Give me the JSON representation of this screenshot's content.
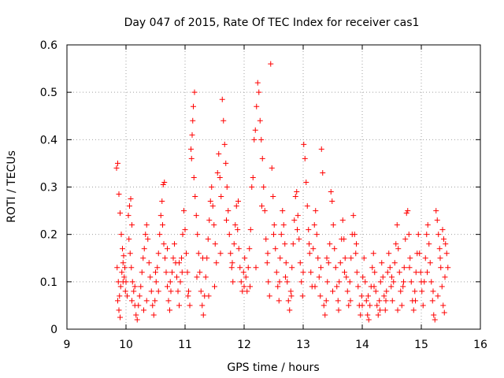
{
  "chart_data": {
    "type": "scatter",
    "title": "Day 047 of 2015, Rate Of TEC Index for receiver cas1",
    "xlabel": "GPS time / hours",
    "ylabel": "ROTI / TECUs",
    "xlim": [
      9,
      16
    ],
    "ylim": [
      0,
      0.6
    ],
    "xticks": [
      "9",
      "10",
      "11",
      "12",
      "13",
      "14",
      "15",
      "16"
    ],
    "yticks": [
      "0",
      "0.1",
      "0.2",
      "0.3",
      "0.4",
      "0.5",
      "0.6"
    ],
    "grid": true,
    "marker": "plus",
    "color": "#ff0000",
    "points": [
      [
        9.84,
        0.34
      ],
      [
        9.86,
        0.35
      ],
      [
        9.88,
        0.285
      ],
      [
        9.9,
        0.245
      ],
      [
        9.92,
        0.2
      ],
      [
        9.85,
        0.13
      ],
      [
        9.87,
        0.1
      ],
      [
        9.89,
        0.07
      ],
      [
        9.91,
        0.09
      ],
      [
        9.93,
        0.12
      ],
      [
        9.95,
        0.14
      ],
      [
        9.97,
        0.11
      ],
      [
        9.99,
        0.08
      ],
      [
        9.86,
        0.06
      ],
      [
        9.88,
        0.04
      ],
      [
        9.9,
        0.025
      ],
      [
        9.94,
        0.17
      ],
      [
        9.96,
        0.155
      ],
      [
        9.98,
        0.13
      ],
      [
        10.0,
        0.1
      ],
      [
        10.02,
        0.07
      ],
      [
        10.04,
        0.24
      ],
      [
        10.06,
        0.26
      ],
      [
        10.08,
        0.275
      ],
      [
        10.1,
        0.22
      ],
      [
        10.05,
        0.19
      ],
      [
        10.07,
        0.16
      ],
      [
        10.09,
        0.13
      ],
      [
        10.11,
        0.1
      ],
      [
        10.13,
        0.08
      ],
      [
        10.15,
        0.05
      ],
      [
        10.17,
        0.03
      ],
      [
        10.19,
        0.02
      ],
      [
        10.21,
        0.05
      ],
      [
        10.23,
        0.07
      ],
      [
        10.25,
        0.09
      ],
      [
        10.27,
        0.12
      ],
      [
        10.29,
        0.15
      ],
      [
        10.31,
        0.17
      ],
      [
        10.33,
        0.2
      ],
      [
        10.35,
        0.22
      ],
      [
        10.37,
        0.19
      ],
      [
        10.39,
        0.14
      ],
      [
        10.41,
        0.11
      ],
      [
        10.43,
        0.08
      ],
      [
        10.45,
        0.05
      ],
      [
        10.47,
        0.03
      ],
      [
        10.49,
        0.06
      ],
      [
        10.51,
        0.1
      ],
      [
        10.53,
        0.13
      ],
      [
        10.55,
        0.16
      ],
      [
        10.57,
        0.2
      ],
      [
        10.59,
        0.24
      ],
      [
        10.61,
        0.27
      ],
      [
        10.63,
        0.305
      ],
      [
        10.65,
        0.31
      ],
      [
        10.62,
        0.22
      ],
      [
        10.64,
        0.18
      ],
      [
        10.66,
        0.15
      ],
      [
        10.68,
        0.12
      ],
      [
        10.7,
        0.09
      ],
      [
        10.72,
        0.06
      ],
      [
        10.74,
        0.04
      ],
      [
        10.76,
        0.08
      ],
      [
        10.78,
        0.12
      ],
      [
        10.8,
        0.15
      ],
      [
        10.82,
        0.18
      ],
      [
        10.84,
        0.14
      ],
      [
        10.86,
        0.11
      ],
      [
        10.88,
        0.08
      ],
      [
        10.9,
        0.05
      ],
      [
        10.92,
        0.1
      ],
      [
        10.94,
        0.15
      ],
      [
        10.96,
        0.2
      ],
      [
        10.98,
        0.25
      ],
      [
        11.0,
        0.21
      ],
      [
        11.02,
        0.16
      ],
      [
        11.04,
        0.12
      ],
      [
        11.06,
        0.08
      ],
      [
        11.08,
        0.05
      ],
      [
        11.1,
        0.38
      ],
      [
        11.12,
        0.41
      ],
      [
        11.14,
        0.47
      ],
      [
        11.16,
        0.5
      ],
      [
        11.13,
        0.44
      ],
      [
        11.11,
        0.36
      ],
      [
        11.15,
        0.32
      ],
      [
        11.17,
        0.28
      ],
      [
        11.19,
        0.24
      ],
      [
        11.21,
        0.2
      ],
      [
        11.23,
        0.16
      ],
      [
        11.25,
        0.12
      ],
      [
        11.27,
        0.08
      ],
      [
        11.29,
        0.05
      ],
      [
        11.31,
        0.03
      ],
      [
        11.33,
        0.07
      ],
      [
        11.35,
        0.11
      ],
      [
        11.37,
        0.15
      ],
      [
        11.39,
        0.19
      ],
      [
        11.41,
        0.23
      ],
      [
        11.43,
        0.27
      ],
      [
        11.45,
        0.3
      ],
      [
        11.47,
        0.26
      ],
      [
        11.49,
        0.22
      ],
      [
        11.51,
        0.18
      ],
      [
        11.53,
        0.14
      ],
      [
        11.55,
        0.33
      ],
      [
        11.57,
        0.37
      ],
      [
        11.59,
        0.32
      ],
      [
        11.61,
        0.28
      ],
      [
        11.63,
        0.485
      ],
      [
        11.65,
        0.44
      ],
      [
        11.67,
        0.39
      ],
      [
        11.69,
        0.35
      ],
      [
        11.71,
        0.3
      ],
      [
        11.73,
        0.25
      ],
      [
        11.75,
        0.2
      ],
      [
        11.77,
        0.16
      ],
      [
        11.79,
        0.13
      ],
      [
        11.81,
        0.1
      ],
      [
        11.83,
        0.18
      ],
      [
        11.85,
        0.22
      ],
      [
        11.87,
        0.26
      ],
      [
        11.89,
        0.21
      ],
      [
        11.91,
        0.17
      ],
      [
        11.93,
        0.13
      ],
      [
        11.95,
        0.1
      ],
      [
        11.97,
        0.08
      ],
      [
        11.99,
        0.12
      ],
      [
        12.01,
        0.15
      ],
      [
        12.03,
        0.11
      ],
      [
        12.05,
        0.08
      ],
      [
        12.07,
        0.13
      ],
      [
        12.09,
        0.17
      ],
      [
        12.11,
        0.21
      ],
      [
        12.13,
        0.3
      ],
      [
        12.15,
        0.32
      ],
      [
        12.17,
        0.4
      ],
      [
        12.19,
        0.42
      ],
      [
        12.21,
        0.47
      ],
      [
        12.23,
        0.52
      ],
      [
        12.25,
        0.5
      ],
      [
        12.27,
        0.44
      ],
      [
        12.29,
        0.4
      ],
      [
        12.31,
        0.36
      ],
      [
        12.33,
        0.3
      ],
      [
        12.35,
        0.25
      ],
      [
        12.37,
        0.19
      ],
      [
        12.39,
        0.14
      ],
      [
        12.41,
        0.1
      ],
      [
        12.43,
        0.07
      ],
      [
        12.45,
        0.56
      ],
      [
        12.47,
        0.34
      ],
      [
        12.49,
        0.28
      ],
      [
        12.51,
        0.22
      ],
      [
        12.53,
        0.17
      ],
      [
        12.55,
        0.12
      ],
      [
        12.57,
        0.09
      ],
      [
        12.59,
        0.06
      ],
      [
        12.61,
        0.15
      ],
      [
        12.63,
        0.2
      ],
      [
        12.65,
        0.25
      ],
      [
        12.67,
        0.22
      ],
      [
        12.69,
        0.18
      ],
      [
        12.71,
        0.14
      ],
      [
        12.73,
        0.1
      ],
      [
        12.75,
        0.06
      ],
      [
        12.77,
        0.04
      ],
      [
        12.79,
        0.08
      ],
      [
        12.81,
        0.13
      ],
      [
        12.83,
        0.18
      ],
      [
        12.85,
        0.23
      ],
      [
        12.87,
        0.28
      ],
      [
        12.89,
        0.29
      ],
      [
        12.91,
        0.24
      ],
      [
        12.93,
        0.19
      ],
      [
        12.95,
        0.14
      ],
      [
        12.97,
        0.1
      ],
      [
        12.99,
        0.07
      ],
      [
        13.01,
        0.39
      ],
      [
        13.03,
        0.36
      ],
      [
        13.05,
        0.31
      ],
      [
        13.07,
        0.26
      ],
      [
        13.09,
        0.21
      ],
      [
        13.11,
        0.16
      ],
      [
        13.13,
        0.12
      ],
      [
        13.15,
        0.09
      ],
      [
        13.17,
        0.17
      ],
      [
        13.19,
        0.22
      ],
      [
        13.21,
        0.25
      ],
      [
        13.23,
        0.2
      ],
      [
        13.25,
        0.15
      ],
      [
        13.27,
        0.11
      ],
      [
        13.29,
        0.07
      ],
      [
        13.31,
        0.38
      ],
      [
        13.33,
        0.33
      ],
      [
        13.35,
        0.05
      ],
      [
        13.37,
        0.03
      ],
      [
        13.39,
        0.06
      ],
      [
        13.41,
        0.1
      ],
      [
        13.43,
        0.14
      ],
      [
        13.45,
        0.18
      ],
      [
        13.47,
        0.29
      ],
      [
        13.49,
        0.27
      ],
      [
        13.51,
        0.22
      ],
      [
        13.53,
        0.17
      ],
      [
        13.55,
        0.13
      ],
      [
        13.57,
        0.09
      ],
      [
        13.59,
        0.06
      ],
      [
        13.61,
        0.1
      ],
      [
        13.63,
        0.14
      ],
      [
        13.65,
        0.19
      ],
      [
        13.67,
        0.23
      ],
      [
        13.69,
        0.19
      ],
      [
        13.71,
        0.15
      ],
      [
        13.73,
        0.11
      ],
      [
        13.75,
        0.08
      ],
      [
        13.77,
        0.05
      ],
      [
        13.79,
        0.1
      ],
      [
        13.81,
        0.15
      ],
      [
        13.83,
        0.2
      ],
      [
        13.85,
        0.24
      ],
      [
        13.87,
        0.2
      ],
      [
        13.89,
        0.16
      ],
      [
        13.91,
        0.12
      ],
      [
        13.93,
        0.09
      ],
      [
        13.95,
        0.05
      ],
      [
        13.97,
        0.03
      ],
      [
        13.99,
        0.07
      ],
      [
        14.01,
        0.11
      ],
      [
        14.03,
        0.15
      ],
      [
        14.05,
        0.1
      ],
      [
        14.07,
        0.06
      ],
      [
        14.09,
        0.03
      ],
      [
        14.11,
        0.02
      ],
      [
        14.13,
        0.05
      ],
      [
        14.15,
        0.09
      ],
      [
        14.17,
        0.13
      ],
      [
        14.19,
        0.16
      ],
      [
        14.21,
        0.12
      ],
      [
        14.23,
        0.08
      ],
      [
        14.25,
        0.05
      ],
      [
        14.27,
        0.03
      ],
      [
        14.29,
        0.06
      ],
      [
        14.31,
        0.1
      ],
      [
        14.33,
        0.14
      ],
      [
        14.35,
        0.11
      ],
      [
        14.37,
        0.07
      ],
      [
        14.39,
        0.04
      ],
      [
        14.41,
        0.08
      ],
      [
        14.43,
        0.12
      ],
      [
        14.45,
        0.16
      ],
      [
        14.47,
        0.13
      ],
      [
        14.49,
        0.09
      ],
      [
        14.51,
        0.06
      ],
      [
        14.53,
        0.1
      ],
      [
        14.55,
        0.14
      ],
      [
        14.57,
        0.18
      ],
      [
        14.59,
        0.22
      ],
      [
        14.61,
        0.17
      ],
      [
        14.63,
        0.12
      ],
      [
        14.65,
        0.08
      ],
      [
        14.67,
        0.05
      ],
      [
        14.69,
        0.09
      ],
      [
        14.71,
        0.13
      ],
      [
        14.73,
        0.19
      ],
      [
        14.75,
        0.245
      ],
      [
        14.77,
        0.25
      ],
      [
        14.79,
        0.2
      ],
      [
        14.81,
        0.15
      ],
      [
        14.83,
        0.1
      ],
      [
        14.85,
        0.06
      ],
      [
        14.87,
        0.04
      ],
      [
        14.89,
        0.08
      ],
      [
        14.91,
        0.12
      ],
      [
        14.93,
        0.16
      ],
      [
        14.95,
        0.2
      ],
      [
        14.97,
        0.16
      ],
      [
        14.99,
        0.12
      ],
      [
        15.01,
        0.08
      ],
      [
        15.03,
        0.05
      ],
      [
        15.05,
        0.1
      ],
      [
        15.07,
        0.15
      ],
      [
        15.09,
        0.2
      ],
      [
        15.11,
        0.22
      ],
      [
        15.13,
        0.18
      ],
      [
        15.15,
        0.14
      ],
      [
        15.17,
        0.1
      ],
      [
        15.19,
        0.06
      ],
      [
        15.21,
        0.03
      ],
      [
        15.23,
        0.02
      ],
      [
        15.25,
        0.25
      ],
      [
        15.27,
        0.23
      ],
      [
        15.29,
        0.2
      ],
      [
        15.31,
        0.17
      ],
      [
        15.33,
        0.13
      ],
      [
        15.35,
        0.09
      ],
      [
        15.37,
        0.05
      ],
      [
        15.39,
        0.035
      ],
      [
        15.41,
        0.18
      ],
      [
        15.43,
        0.16
      ],
      [
        15.45,
        0.13
      ],
      [
        15.36,
        0.21
      ],
      [
        15.38,
        0.19
      ],
      [
        10.1,
        0.06
      ],
      [
        10.3,
        0.04
      ],
      [
        10.5,
        0.12
      ],
      [
        10.7,
        0.17
      ],
      [
        10.9,
        0.14
      ],
      [
        11.05,
        0.07
      ],
      [
        11.3,
        0.15
      ],
      [
        11.5,
        0.09
      ],
      [
        11.7,
        0.23
      ],
      [
        11.9,
        0.27
      ],
      [
        12.1,
        0.09
      ],
      [
        12.3,
        0.26
      ],
      [
        12.5,
        0.2
      ],
      [
        12.7,
        0.11
      ],
      [
        12.9,
        0.21
      ],
      [
        13.1,
        0.18
      ],
      [
        13.3,
        0.13
      ],
      [
        13.5,
        0.08
      ],
      [
        13.7,
        0.12
      ],
      [
        13.9,
        0.18
      ],
      [
        14.1,
        0.07
      ],
      [
        14.3,
        0.04
      ],
      [
        14.5,
        0.11
      ],
      [
        14.7,
        0.1
      ],
      [
        14.9,
        0.06
      ],
      [
        15.1,
        0.12
      ],
      [
        9.95,
        0.1
      ],
      [
        10.15,
        0.09
      ],
      [
        10.35,
        0.06
      ],
      [
        10.55,
        0.08
      ],
      [
        10.75,
        0.1
      ],
      [
        10.95,
        0.12
      ],
      [
        11.2,
        0.11
      ],
      [
        11.4,
        0.07
      ],
      [
        11.6,
        0.16
      ],
      [
        11.8,
        0.14
      ],
      [
        12.0,
        0.09
      ],
      [
        12.2,
        0.13
      ],
      [
        12.4,
        0.16
      ],
      [
        12.6,
        0.1
      ],
      [
        12.8,
        0.07
      ],
      [
        13.0,
        0.12
      ],
      [
        13.2,
        0.09
      ],
      [
        13.4,
        0.15
      ],
      [
        13.6,
        0.04
      ],
      [
        13.8,
        0.06
      ],
      [
        14.0,
        0.05
      ],
      [
        14.2,
        0.09
      ],
      [
        14.4,
        0.06
      ],
      [
        14.6,
        0.04
      ],
      [
        14.8,
        0.13
      ],
      [
        15.0,
        0.1
      ],
      [
        15.2,
        0.08
      ],
      [
        15.4,
        0.11
      ],
      [
        15.32,
        0.15
      ],
      [
        15.28,
        0.07
      ]
    ]
  }
}
